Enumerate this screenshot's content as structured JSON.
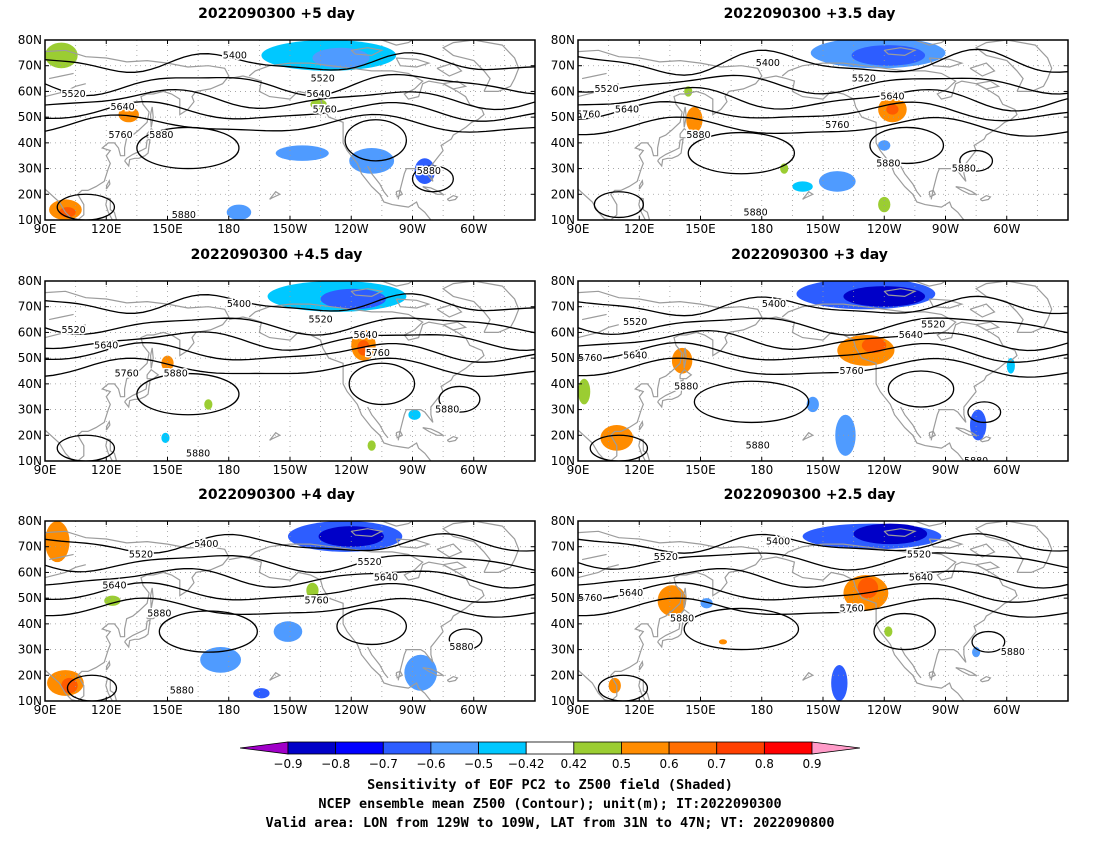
{
  "axes": {
    "x_ticks": [
      "90E",
      "120E",
      "150E",
      "180",
      "150W",
      "120W",
      "90W",
      "60W"
    ],
    "y_ticks": [
      "10N",
      "20N",
      "30N",
      "40N",
      "50N",
      "60N",
      "70N",
      "80N"
    ]
  },
  "contour_levels": [
    "5400",
    "5520",
    "5640",
    "5760",
    "5880"
  ],
  "panels": [
    {
      "title": "2022090300 +5 day",
      "contour_labels": [
        {
          "text": "5400",
          "lon": 183,
          "lat": 74
        },
        {
          "text": "5520",
          "lon": 226,
          "lat": 65
        },
        {
          "text": "5520",
          "lon": 104,
          "lat": 59
        },
        {
          "text": "5640",
          "lon": 128,
          "lat": 54
        },
        {
          "text": "5640",
          "lon": 224,
          "lat": 59
        },
        {
          "text": "5760",
          "lon": 227,
          "lat": 53
        },
        {
          "text": "5760",
          "lon": 127,
          "lat": 43
        },
        {
          "text": "5880",
          "lon": 147,
          "lat": 43
        },
        {
          "text": "5880",
          "lon": 158,
          "lat": 12
        },
        {
          "text": "5880",
          "lon": 278,
          "lat": 29
        }
      ],
      "blobs": [
        {
          "lon": 229,
          "lat": 74,
          "rx": 33,
          "ry": 6,
          "color": "#00c8ff"
        },
        {
          "lon": 235,
          "lat": 73,
          "rx": 14,
          "ry": 4,
          "color": "#4f9bff"
        },
        {
          "lon": 250,
          "lat": 33,
          "rx": 11,
          "ry": 5,
          "color": "#4f9bff"
        },
        {
          "lon": 276,
          "lat": 29,
          "rx": 5,
          "ry": 5,
          "color": "#2d5dff"
        },
        {
          "lon": 216,
          "lat": 36,
          "rx": 13,
          "ry": 3,
          "color": "#4f9bff"
        },
        {
          "lon": 185,
          "lat": 13,
          "rx": 6,
          "ry": 3,
          "color": "#4f9bff"
        },
        {
          "lon": 98,
          "lat": 74,
          "rx": 8,
          "ry": 5,
          "color": "#9bcd32"
        },
        {
          "lon": 131,
          "lat": 51,
          "rx": 5,
          "ry": 3,
          "color": "#ff8c00"
        },
        {
          "lon": 224,
          "lat": 55,
          "rx": 4,
          "ry": 2,
          "color": "#9bcd32"
        },
        {
          "lon": 100,
          "lat": 14,
          "rx": 8,
          "ry": 4,
          "color": "#ff8c00"
        },
        {
          "lon": 101,
          "lat": 13,
          "rx": 4,
          "ry": 2,
          "color": "#ff5a00"
        }
      ]
    },
    {
      "title": "2022090300 +3.5 day",
      "contour_labels": [
        {
          "text": "5400",
          "lon": 183,
          "lat": 71
        },
        {
          "text": "5520",
          "lon": 230,
          "lat": 65
        },
        {
          "text": "5520",
          "lon": 104,
          "lat": 61
        },
        {
          "text": "5640",
          "lon": 244,
          "lat": 58
        },
        {
          "text": "5640",
          "lon": 114,
          "lat": 53
        },
        {
          "text": "5760",
          "lon": 95,
          "lat": 51
        },
        {
          "text": "5760",
          "lon": 217,
          "lat": 47
        },
        {
          "text": "5880",
          "lon": 149,
          "lat": 43
        },
        {
          "text": "5880",
          "lon": 242,
          "lat": 32
        },
        {
          "text": "5880",
          "lon": 279,
          "lat": 30
        },
        {
          "text": "5880",
          "lon": 177,
          "lat": 13
        }
      ],
      "blobs": [
        {
          "lon": 237,
          "lat": 75,
          "rx": 33,
          "ry": 6,
          "color": "#4f9bff"
        },
        {
          "lon": 242,
          "lat": 74,
          "rx": 18,
          "ry": 4,
          "color": "#2d5dff"
        },
        {
          "lon": 244,
          "lat": 53,
          "rx": 7,
          "ry": 5,
          "color": "#ff8c00"
        },
        {
          "lon": 244,
          "lat": 53,
          "rx": 3,
          "ry": 2,
          "color": "#ff5a00"
        },
        {
          "lon": 147,
          "lat": 49,
          "rx": 4,
          "ry": 5,
          "color": "#ff8c00"
        },
        {
          "lon": 144,
          "lat": 60,
          "rx": 2,
          "ry": 2,
          "color": "#9bcd32"
        },
        {
          "lon": 217,
          "lat": 25,
          "rx": 9,
          "ry": 4,
          "color": "#4f9bff"
        },
        {
          "lon": 200,
          "lat": 23,
          "rx": 5,
          "ry": 2,
          "color": "#00c8ff"
        },
        {
          "lon": 191,
          "lat": 30,
          "rx": 2,
          "ry": 2,
          "color": "#9bcd32"
        },
        {
          "lon": 240,
          "lat": 39,
          "rx": 3,
          "ry": 2,
          "color": "#4f9bff"
        },
        {
          "lon": 240,
          "lat": 16,
          "rx": 3,
          "ry": 3,
          "color": "#9bcd32"
        }
      ]
    },
    {
      "title": "2022090300 +4.5 day",
      "contour_labels": [
        {
          "text": "5400",
          "lon": 185,
          "lat": 71
        },
        {
          "text": "5520",
          "lon": 225,
          "lat": 65
        },
        {
          "text": "5520",
          "lon": 104,
          "lat": 61
        },
        {
          "text": "5640",
          "lon": 120,
          "lat": 55
        },
        {
          "text": "5640",
          "lon": 247,
          "lat": 59
        },
        {
          "text": "5760",
          "lon": 253,
          "lat": 52
        },
        {
          "text": "5760",
          "lon": 130,
          "lat": 44
        },
        {
          "text": "5880",
          "lon": 154,
          "lat": 44
        },
        {
          "text": "5880",
          "lon": 165,
          "lat": 13
        },
        {
          "text": "5880",
          "lon": 287,
          "lat": 30
        }
      ],
      "blobs": [
        {
          "lon": 233,
          "lat": 74,
          "rx": 34,
          "ry": 6,
          "color": "#00c8ff"
        },
        {
          "lon": 241,
          "lat": 73,
          "rx": 16,
          "ry": 4,
          "color": "#2d5dff"
        },
        {
          "lon": 246,
          "lat": 55,
          "rx": 6,
          "ry": 6,
          "color": "#ff8c00"
        },
        {
          "lon": 246,
          "lat": 54,
          "rx": 3,
          "ry": 3,
          "color": "#ff5a00"
        },
        {
          "lon": 150,
          "lat": 48,
          "rx": 3,
          "ry": 3,
          "color": "#ff8c00"
        },
        {
          "lon": 170,
          "lat": 32,
          "rx": 2,
          "ry": 2,
          "color": "#9bcd32"
        },
        {
          "lon": 149,
          "lat": 19,
          "rx": 2,
          "ry": 2,
          "color": "#00c8ff"
        },
        {
          "lon": 271,
          "lat": 28,
          "rx": 3,
          "ry": 2,
          "color": "#00c8ff"
        },
        {
          "lon": 250,
          "lat": 16,
          "rx": 2,
          "ry": 2,
          "color": "#9bcd32"
        }
      ]
    },
    {
      "title": "2022090300 +3 day",
      "contour_labels": [
        {
          "text": "5400",
          "lon": 186,
          "lat": 71
        },
        {
          "text": "5520",
          "lon": 264,
          "lat": 63
        },
        {
          "text": "5520",
          "lon": 118,
          "lat": 64
        },
        {
          "text": "5640",
          "lon": 253,
          "lat": 59
        },
        {
          "text": "5640",
          "lon": 118,
          "lat": 51
        },
        {
          "text": "5760",
          "lon": 96,
          "lat": 50
        },
        {
          "text": "5760",
          "lon": 224,
          "lat": 45
        },
        {
          "text": "5880",
          "lon": 143,
          "lat": 39
        },
        {
          "text": "5880",
          "lon": 178,
          "lat": 16
        },
        {
          "text": "5880",
          "lon": 285,
          "lat": 10
        }
      ],
      "blobs": [
        {
          "lon": 231,
          "lat": 75,
          "rx": 34,
          "ry": 6,
          "color": "#2d5dff"
        },
        {
          "lon": 240,
          "lat": 74,
          "rx": 20,
          "ry": 4,
          "color": "#0000c8"
        },
        {
          "lon": 231,
          "lat": 53,
          "rx": 14,
          "ry": 6,
          "color": "#ff8c00"
        },
        {
          "lon": 235,
          "lat": 55,
          "rx": 6,
          "ry": 3,
          "color": "#ff5a00"
        },
        {
          "lon": 141,
          "lat": 49,
          "rx": 5,
          "ry": 5,
          "color": "#ff8c00"
        },
        {
          "lon": 109,
          "lat": 19,
          "rx": 8,
          "ry": 5,
          "color": "#ff8c00"
        },
        {
          "lon": 93,
          "lat": 37,
          "rx": 3,
          "ry": 5,
          "color": "#9bcd32"
        },
        {
          "lon": 221,
          "lat": 20,
          "rx": 5,
          "ry": 8,
          "color": "#4f9bff"
        },
        {
          "lon": 205,
          "lat": 32,
          "rx": 3,
          "ry": 3,
          "color": "#4f9bff"
        },
        {
          "lon": 286,
          "lat": 24,
          "rx": 4,
          "ry": 6,
          "color": "#2d5dff"
        },
        {
          "lon": 302,
          "lat": 47,
          "rx": 2,
          "ry": 3,
          "color": "#00c8ff"
        }
      ]
    },
    {
      "title": "2022090300 +4 day",
      "contour_labels": [
        {
          "text": "5400",
          "lon": 169,
          "lat": 71
        },
        {
          "text": "5520",
          "lon": 249,
          "lat": 64
        },
        {
          "text": "5520",
          "lon": 137,
          "lat": 67
        },
        {
          "text": "5640",
          "lon": 257,
          "lat": 58
        },
        {
          "text": "5640",
          "lon": 124,
          "lat": 55
        },
        {
          "text": "5760",
          "lon": 223,
          "lat": 49
        },
        {
          "text": "5880",
          "lon": 146,
          "lat": 44
        },
        {
          "text": "5880",
          "lon": 157,
          "lat": 14
        },
        {
          "text": "5880",
          "lon": 294,
          "lat": 31
        }
      ],
      "blobs": [
        {
          "lon": 237,
          "lat": 74,
          "rx": 28,
          "ry": 6,
          "color": "#2d5dff"
        },
        {
          "lon": 240,
          "lat": 74,
          "rx": 16,
          "ry": 4,
          "color": "#0000c8"
        },
        {
          "lon": 96,
          "lat": 72,
          "rx": 6,
          "ry": 8,
          "color": "#ff8c00"
        },
        {
          "lon": 100,
          "lat": 17,
          "rx": 9,
          "ry": 5,
          "color": "#ff8c00"
        },
        {
          "lon": 102,
          "lat": 16,
          "rx": 4,
          "ry": 3,
          "color": "#ff5a00"
        },
        {
          "lon": 176,
          "lat": 26,
          "rx": 10,
          "ry": 5,
          "color": "#4f9bff"
        },
        {
          "lon": 209,
          "lat": 37,
          "rx": 7,
          "ry": 4,
          "color": "#4f9bff"
        },
        {
          "lon": 274,
          "lat": 21,
          "rx": 8,
          "ry": 7,
          "color": "#4f9bff"
        },
        {
          "lon": 196,
          "lat": 13,
          "rx": 4,
          "ry": 2,
          "color": "#2d5dff"
        },
        {
          "lon": 123,
          "lat": 49,
          "rx": 4,
          "ry": 2,
          "color": "#9bcd32"
        },
        {
          "lon": 221,
          "lat": 53,
          "rx": 3,
          "ry": 3,
          "color": "#9bcd32"
        }
      ]
    },
    {
      "title": "2022090300 +2.5 day",
      "contour_labels": [
        {
          "text": "5400",
          "lon": 188,
          "lat": 72
        },
        {
          "text": "5520",
          "lon": 257,
          "lat": 67
        },
        {
          "text": "5520",
          "lon": 133,
          "lat": 66
        },
        {
          "text": "5640",
          "lon": 258,
          "lat": 58
        },
        {
          "text": "5640",
          "lon": 116,
          "lat": 52
        },
        {
          "text": "5760",
          "lon": 96,
          "lat": 50
        },
        {
          "text": "5760",
          "lon": 224,
          "lat": 46
        },
        {
          "text": "5880",
          "lon": 141,
          "lat": 42
        },
        {
          "text": "5880",
          "lon": 303,
          "lat": 29
        }
      ],
      "blobs": [
        {
          "lon": 234,
          "lat": 74,
          "rx": 34,
          "ry": 5,
          "color": "#2d5dff"
        },
        {
          "lon": 243,
          "lat": 75,
          "rx": 18,
          "ry": 4,
          "color": "#0000c8"
        },
        {
          "lon": 231,
          "lat": 52,
          "rx": 11,
          "ry": 7,
          "color": "#ff8c00"
        },
        {
          "lon": 232,
          "lat": 54,
          "rx": 5,
          "ry": 4,
          "color": "#ff5a00"
        },
        {
          "lon": 136,
          "lat": 49,
          "rx": 7,
          "ry": 6,
          "color": "#ff8c00"
        },
        {
          "lon": 153,
          "lat": 48,
          "rx": 3,
          "ry": 2,
          "color": "#4f9bff"
        },
        {
          "lon": 218,
          "lat": 17,
          "rx": 4,
          "ry": 7,
          "color": "#2d5dff"
        },
        {
          "lon": 108,
          "lat": 16,
          "rx": 3,
          "ry": 3,
          "color": "#ff8c00"
        },
        {
          "lon": 285,
          "lat": 29,
          "rx": 2,
          "ry": 2,
          "color": "#4f9bff"
        },
        {
          "lon": 161,
          "lat": 33,
          "rx": 2,
          "ry": 1,
          "color": "#ff8c00"
        },
        {
          "lon": 242,
          "lat": 37,
          "rx": 2,
          "ry": 2,
          "color": "#9bcd32"
        }
      ]
    }
  ],
  "colorbar": {
    "labels": [
      "−0.9",
      "−0.8",
      "−0.7",
      "−0.6",
      "−0.5",
      "−0.42",
      "0.42",
      "0.5",
      "0.6",
      "0.7",
      "0.8",
      "0.9"
    ],
    "colors": [
      "#a000c8",
      "#0000c8",
      "#0000ff",
      "#2d5dff",
      "#4f9bff",
      "#00c8ff",
      "#ffffff",
      "#9bcd32",
      "#ff8c00",
      "#ff6e00",
      "#ff4000",
      "#ff0000",
      "#ff9bc8"
    ]
  },
  "caption": {
    "line1": "Sensitivity of EOF PC2 to Z500 field (Shaded)",
    "line2": "NCEP ensemble mean Z500 (Contour); unit(m); IT:2022090300",
    "line3": "Valid area: LON from 129W to 109W, LAT from 31N to 47N; VT: 2022090800"
  }
}
